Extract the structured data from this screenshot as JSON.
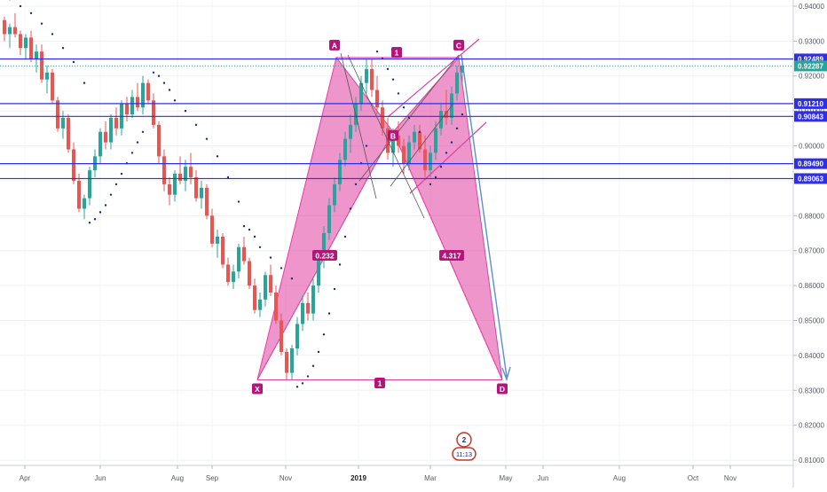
{
  "chart_data": {
    "type": "candlestick",
    "x_axis": {
      "labels": [
        "Apr",
        "Jun",
        "Aug",
        "Sep",
        "Nov",
        "2019",
        "Mar",
        "May",
        "Jun",
        "Aug",
        "Oct",
        "Nov"
      ],
      "bold_labels": [
        "2019"
      ]
    },
    "y_axis": {
      "ticks": [
        "0.81000",
        "0.82000",
        "0.83000",
        "0.84000",
        "0.85000",
        "0.86000",
        "0.87000",
        "0.88000",
        "0.89000",
        "0.90000",
        "0.91000",
        "0.92000",
        "0.93000",
        "0.94000"
      ],
      "ylim": [
        0.8085,
        0.941
      ],
      "position": "right"
    },
    "price_levels": [
      {
        "value": 0.92489,
        "label": "0.92489",
        "color": "#2f2fe6"
      },
      {
        "value": 0.9121,
        "label": "0.91210",
        "color": "#2f2fe6"
      },
      {
        "value": 0.90843,
        "label": "0.90843",
        "color": "#2f2fe6"
      },
      {
        "value": 0.8949,
        "label": "0.89490",
        "color": "#2f2fe6"
      },
      {
        "value": 0.89063,
        "label": "0.89063",
        "color": "#2f2fe6"
      }
    ],
    "last_price": {
      "value": 0.92287,
      "label": "0.92287",
      "color": "#26a69a"
    },
    "pattern": {
      "points": [
        {
          "name": "X",
          "value": 0.833
        },
        {
          "name": "A",
          "value": 0.9253
        },
        {
          "name": "B",
          "value": 0.904
        },
        {
          "name": "C",
          "value": 0.9253
        },
        {
          "name": "D",
          "value": 0.833
        }
      ],
      "ratios": [
        {
          "label": "0.232",
          "segment": "XB"
        },
        {
          "label": "4.317",
          "segment": "BD"
        },
        {
          "label": "1",
          "segment": "AC"
        },
        {
          "label": "1",
          "segment": "XD"
        }
      ],
      "fill_color": "#e040a0"
    },
    "colors": {
      "up": "#26a69a",
      "down": "#ef5350",
      "sar": "#1e2a78",
      "projection": "#5b8fd4",
      "channel": "#e040a0"
    },
    "candles": [
      [
        0.936,
        0.937,
        0.93,
        0.932
      ],
      [
        0.932,
        0.935,
        0.928,
        0.934
      ],
      [
        0.934,
        0.938,
        0.931,
        0.932
      ],
      [
        0.932,
        0.933,
        0.926,
        0.928
      ],
      [
        0.928,
        0.932,
        0.925,
        0.931
      ],
      [
        0.931,
        0.933,
        0.924,
        0.925
      ],
      [
        0.925,
        0.929,
        0.921,
        0.927
      ],
      [
        0.927,
        0.929,
        0.918,
        0.919
      ],
      [
        0.919,
        0.923,
        0.915,
        0.921
      ],
      [
        0.921,
        0.922,
        0.912,
        0.913
      ],
      [
        0.913,
        0.914,
        0.904,
        0.905
      ],
      [
        0.905,
        0.91,
        0.902,
        0.908
      ],
      [
        0.908,
        0.909,
        0.898,
        0.899
      ],
      [
        0.899,
        0.901,
        0.889,
        0.89
      ],
      [
        0.89,
        0.892,
        0.881,
        0.882
      ],
      [
        0.882,
        0.886,
        0.879,
        0.885
      ],
      [
        0.885,
        0.894,
        0.883,
        0.893
      ],
      [
        0.893,
        0.899,
        0.891,
        0.897
      ],
      [
        0.897,
        0.905,
        0.895,
        0.904
      ],
      [
        0.904,
        0.907,
        0.899,
        0.901
      ],
      [
        0.901,
        0.909,
        0.899,
        0.908
      ],
      [
        0.908,
        0.911,
        0.903,
        0.905
      ],
      [
        0.905,
        0.913,
        0.903,
        0.912
      ],
      [
        0.912,
        0.914,
        0.907,
        0.909
      ],
      [
        0.909,
        0.916,
        0.908,
        0.914
      ],
      [
        0.914,
        0.918,
        0.91,
        0.911
      ],
      [
        0.911,
        0.92,
        0.909,
        0.918
      ],
      [
        0.918,
        0.919,
        0.912,
        0.913
      ],
      [
        0.913,
        0.915,
        0.905,
        0.906
      ],
      [
        0.906,
        0.907,
        0.895,
        0.897
      ],
      [
        0.897,
        0.899,
        0.887,
        0.889
      ],
      [
        0.889,
        0.891,
        0.883,
        0.886
      ],
      [
        0.886,
        0.893,
        0.884,
        0.892
      ],
      [
        0.892,
        0.897,
        0.889,
        0.89
      ],
      [
        0.89,
        0.896,
        0.887,
        0.894
      ],
      [
        0.894,
        0.898,
        0.889,
        0.891
      ],
      [
        0.891,
        0.893,
        0.884,
        0.885
      ],
      [
        0.885,
        0.89,
        0.882,
        0.888
      ],
      [
        0.888,
        0.889,
        0.879,
        0.88
      ],
      [
        0.88,
        0.882,
        0.871,
        0.872
      ],
      [
        0.872,
        0.876,
        0.868,
        0.874
      ],
      [
        0.874,
        0.875,
        0.865,
        0.866
      ],
      [
        0.866,
        0.868,
        0.86,
        0.861
      ],
      [
        0.861,
        0.866,
        0.859,
        0.864
      ],
      [
        0.864,
        0.872,
        0.862,
        0.871
      ],
      [
        0.871,
        0.874,
        0.866,
        0.867
      ],
      [
        0.867,
        0.868,
        0.859,
        0.86
      ],
      [
        0.86,
        0.862,
        0.852,
        0.853
      ],
      [
        0.853,
        0.858,
        0.851,
        0.856
      ],
      [
        0.856,
        0.864,
        0.854,
        0.863
      ],
      [
        0.863,
        0.866,
        0.857,
        0.858
      ],
      [
        0.858,
        0.86,
        0.849,
        0.85
      ],
      [
        0.85,
        0.852,
        0.84,
        0.841
      ],
      [
        0.841,
        0.842,
        0.833,
        0.835
      ],
      [
        0.835,
        0.843,
        0.833,
        0.842
      ],
      [
        0.842,
        0.851,
        0.84,
        0.849
      ],
      [
        0.849,
        0.857,
        0.847,
        0.855
      ],
      [
        0.855,
        0.858,
        0.85,
        0.852
      ],
      [
        0.852,
        0.862,
        0.85,
        0.86
      ],
      [
        0.86,
        0.87,
        0.858,
        0.868
      ],
      [
        0.868,
        0.877,
        0.865,
        0.875
      ],
      [
        0.875,
        0.885,
        0.873,
        0.883
      ],
      [
        0.883,
        0.891,
        0.881,
        0.889
      ],
      [
        0.889,
        0.898,
        0.887,
        0.896
      ],
      [
        0.896,
        0.904,
        0.894,
        0.902
      ],
      [
        0.902,
        0.909,
        0.898,
        0.906
      ],
      [
        0.906,
        0.914,
        0.904,
        0.912
      ],
      [
        0.912,
        0.92,
        0.91,
        0.918
      ],
      [
        0.918,
        0.925,
        0.915,
        0.922
      ],
      [
        0.922,
        0.925,
        0.914,
        0.916
      ],
      [
        0.916,
        0.92,
        0.909,
        0.911
      ],
      [
        0.911,
        0.913,
        0.903,
        0.905
      ],
      [
        0.905,
        0.908,
        0.896,
        0.898
      ],
      [
        0.898,
        0.905,
        0.894,
        0.903
      ],
      [
        0.903,
        0.907,
        0.898,
        0.9
      ],
      [
        0.9,
        0.902,
        0.892,
        0.895
      ],
      [
        0.895,
        0.903,
        0.893,
        0.901
      ],
      [
        0.901,
        0.906,
        0.899,
        0.904
      ],
      [
        0.904,
        0.906,
        0.898,
        0.899
      ],
      [
        0.899,
        0.903,
        0.891,
        0.893
      ],
      [
        0.893,
        0.9,
        0.891,
        0.898
      ],
      [
        0.898,
        0.907,
        0.896,
        0.905
      ],
      [
        0.905,
        0.912,
        0.903,
        0.91
      ],
      [
        0.91,
        0.916,
        0.906,
        0.908
      ],
      [
        0.908,
        0.917,
        0.906,
        0.915
      ],
      [
        0.915,
        0.923,
        0.913,
        0.921
      ],
      [
        0.921,
        0.925,
        0.918,
        0.923
      ]
    ],
    "sar_dots": [
      [
        1,
        0.942
      ],
      [
        3,
        0.94
      ],
      [
        5,
        0.938
      ],
      [
        7,
        0.935
      ],
      [
        9,
        0.932
      ],
      [
        11,
        0.928
      ],
      [
        13,
        0.924
      ],
      [
        15,
        0.918
      ],
      [
        16,
        0.878
      ],
      [
        17,
        0.879
      ],
      [
        18,
        0.881
      ],
      [
        19,
        0.883
      ],
      [
        20,
        0.886
      ],
      [
        21,
        0.889
      ],
      [
        22,
        0.892
      ],
      [
        23,
        0.895
      ],
      [
        24,
        0.898
      ],
      [
        25,
        0.901
      ],
      [
        26,
        0.904
      ],
      [
        28,
        0.921
      ],
      [
        29,
        0.92
      ],
      [
        30,
        0.918
      ],
      [
        31,
        0.916
      ],
      [
        32,
        0.913
      ],
      [
        34,
        0.91
      ],
      [
        36,
        0.906
      ],
      [
        38,
        0.902
      ],
      [
        40,
        0.897
      ],
      [
        42,
        0.891
      ],
      [
        44,
        0.884
      ],
      [
        45,
        0.877
      ],
      [
        46,
        0.876
      ],
      [
        47,
        0.874
      ],
      [
        48,
        0.871
      ],
      [
        50,
        0.868
      ],
      [
        52,
        0.865
      ],
      [
        54,
        0.862
      ],
      [
        55,
        0.831
      ],
      [
        56,
        0.832
      ],
      [
        57,
        0.834
      ],
      [
        58,
        0.837
      ],
      [
        59,
        0.841
      ],
      [
        60,
        0.846
      ],
      [
        61,
        0.852
      ],
      [
        62,
        0.859
      ],
      [
        63,
        0.866
      ],
      [
        64,
        0.874
      ],
      [
        65,
        0.882
      ],
      [
        66,
        0.889
      ],
      [
        67,
        0.895
      ],
      [
        68,
        0.9
      ],
      [
        70,
        0.927
      ],
      [
        71,
        0.925
      ],
      [
        72,
        0.922
      ],
      [
        73,
        0.919
      ],
      [
        74,
        0.915
      ],
      [
        75,
        0.911
      ],
      [
        76,
        0.908
      ],
      [
        78,
        0.904
      ],
      [
        80,
        0.889
      ],
      [
        81,
        0.891
      ],
      [
        82,
        0.894
      ],
      [
        83,
        0.898
      ],
      [
        84,
        0.901
      ],
      [
        85,
        0.905
      ],
      [
        86,
        0.909
      ]
    ]
  },
  "overlay": {
    "badge_line1": "2",
    "badge_line2": "11:13"
  }
}
